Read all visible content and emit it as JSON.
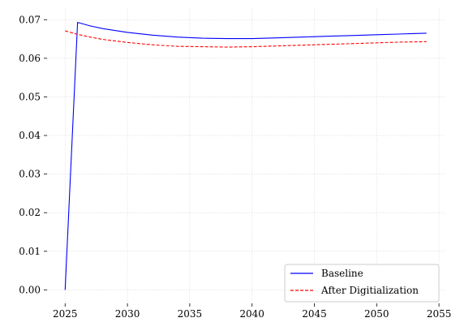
{
  "chart_data": {
    "type": "line",
    "title": "",
    "xlabel": "",
    "ylabel": "",
    "xlim": [
      2023.55,
      2055.45
    ],
    "ylim": [
      -0.0035,
      0.073
    ],
    "xticks": [
      2025,
      2030,
      2035,
      2040,
      2045,
      2050,
      2055
    ],
    "yticks": [
      0.0,
      0.01,
      0.02,
      0.03,
      0.04,
      0.05,
      0.06,
      0.07
    ],
    "ytick_format_decimals": 2,
    "grid": true,
    "legend_position": "lower-right",
    "series": [
      {
        "name": "Baseline",
        "color": "#0000ff",
        "dash": "solid",
        "x": [
          2025,
          2026,
          2027,
          2028,
          2030,
          2032,
          2034,
          2036,
          2038,
          2040,
          2042,
          2044,
          2046,
          2048,
          2050,
          2052,
          2054
        ],
        "y": [
          0.0,
          0.0693,
          0.0684,
          0.0677,
          0.0667,
          0.066,
          0.0655,
          0.0652,
          0.0651,
          0.0651,
          0.0653,
          0.0655,
          0.0657,
          0.0659,
          0.0661,
          0.0663,
          0.0665
        ]
      },
      {
        "name": "After Digitialization",
        "color": "#ff0000",
        "dash": "dashed",
        "x": [
          2025,
          2026,
          2027,
          2028,
          2030,
          2032,
          2034,
          2036,
          2038,
          2040,
          2042,
          2044,
          2046,
          2048,
          2050,
          2052,
          2054
        ],
        "y": [
          0.0671,
          0.0662,
          0.0655,
          0.0649,
          0.0641,
          0.0635,
          0.0631,
          0.063,
          0.0629,
          0.063,
          0.0632,
          0.0634,
          0.0636,
          0.0638,
          0.064,
          0.0642,
          0.0643
        ]
      }
    ]
  }
}
